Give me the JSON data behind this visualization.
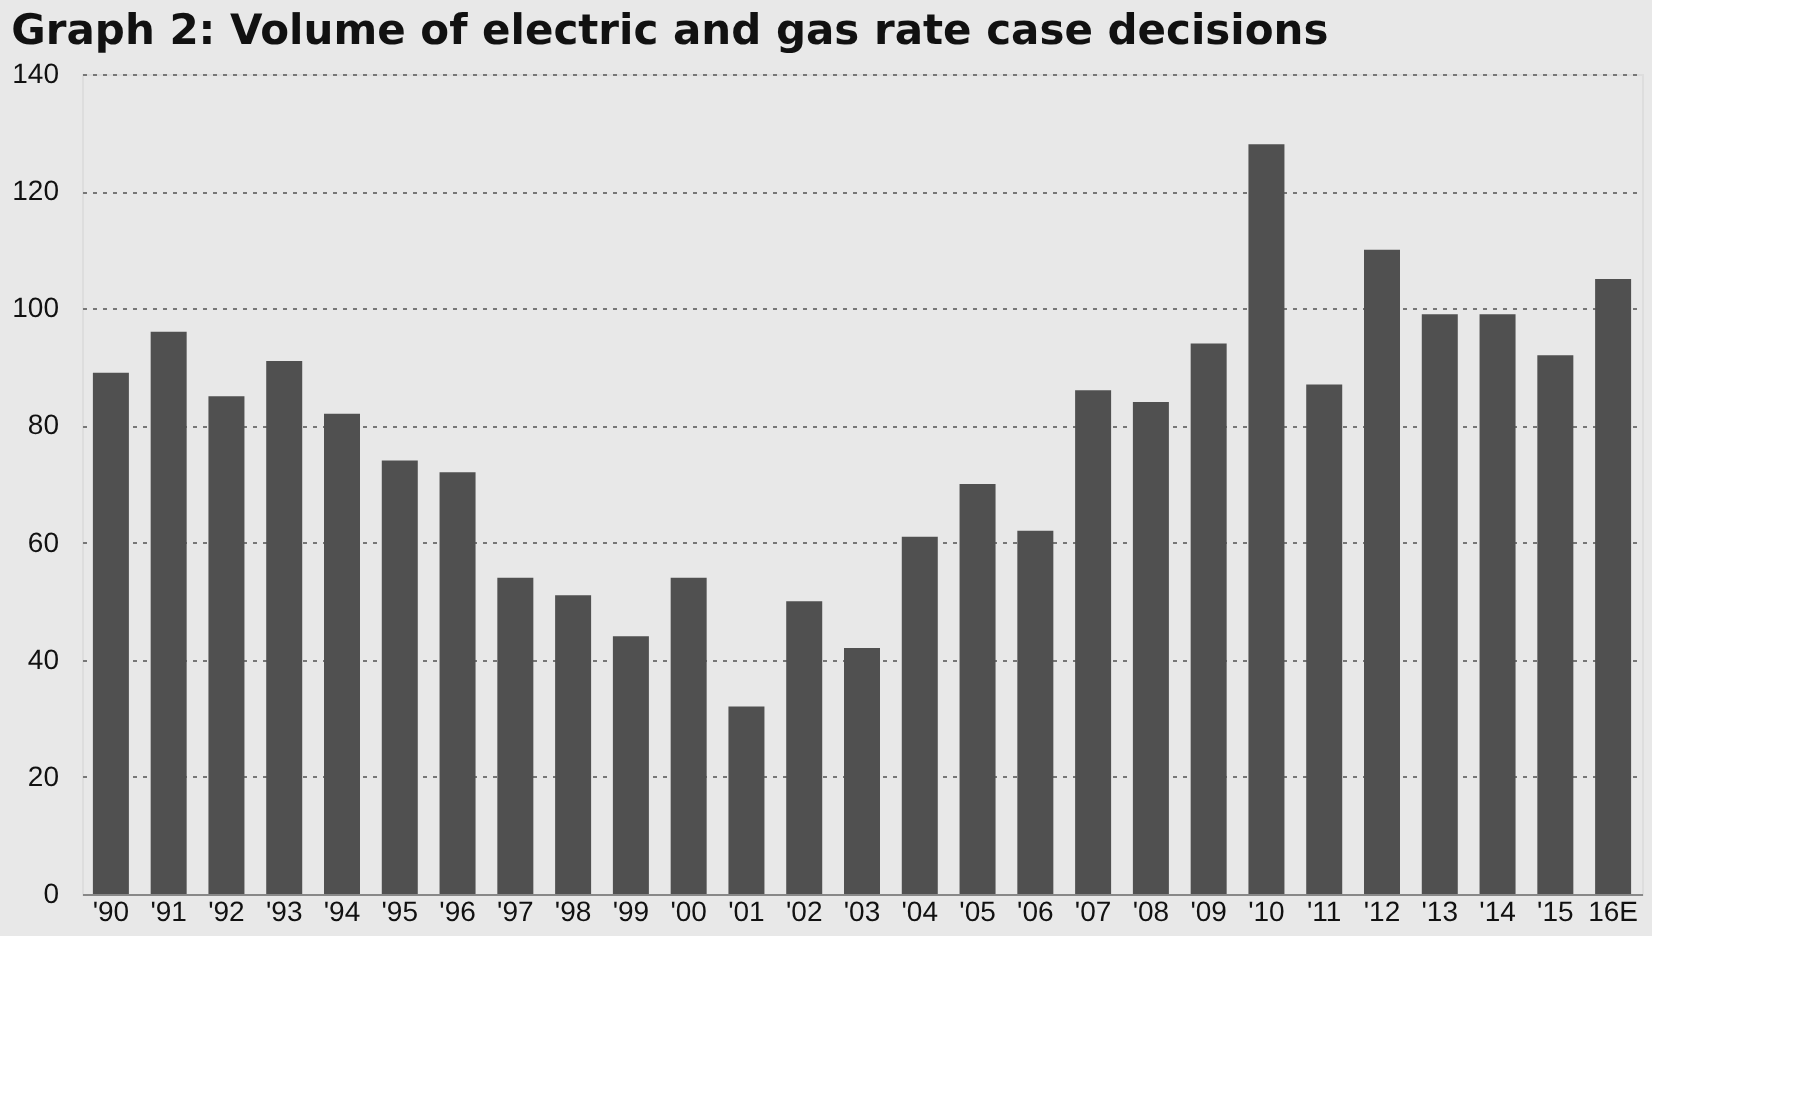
{
  "chart_data": {
    "type": "bar",
    "title": "Graph 2: Volume of electric and gas rate case decisions",
    "categories": [
      "'90",
      "'91",
      "'92",
      "'93",
      "'94",
      "'95",
      "'96",
      "'97",
      "'98",
      "'99",
      "'00",
      "'01",
      "'02",
      "'03",
      "'04",
      "'05",
      "'06",
      "'07",
      "'08",
      "'09",
      "'10",
      "'11",
      "'12",
      "'13",
      "'14",
      "'15",
      "16E"
    ],
    "values": [
      89,
      96,
      85,
      91,
      82,
      74,
      72,
      54,
      51,
      44,
      54,
      32,
      50,
      42,
      61,
      70,
      62,
      86,
      84,
      94,
      128,
      87,
      110,
      99,
      99,
      92,
      105
    ],
    "color": "#505050",
    "ylim": [
      0,
      140
    ],
    "yticks": [
      0,
      20,
      40,
      60,
      80,
      100,
      120,
      140
    ],
    "grid": "y"
  }
}
